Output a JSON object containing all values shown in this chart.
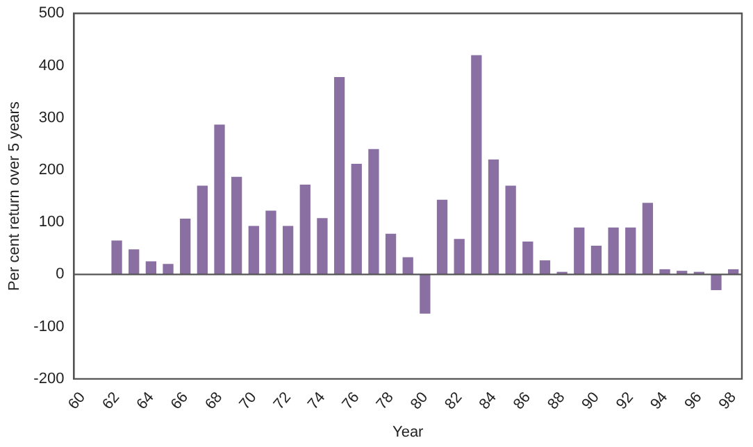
{
  "chart_data": {
    "type": "bar",
    "xlabel": "Year",
    "ylabel": "Per cent return over 5 years",
    "categories": [
      "60",
      null,
      "62",
      null,
      "64",
      null,
      "66",
      null,
      "68",
      null,
      "70",
      null,
      "72",
      null,
      "74",
      null,
      "76",
      null,
      "78",
      null,
      "80",
      null,
      "82",
      null,
      "84",
      null,
      "86",
      null,
      "88",
      null,
      "90",
      null,
      "92",
      null,
      "94",
      null,
      "96",
      null,
      "98"
    ],
    "values": [
      null,
      null,
      65,
      48,
      25,
      20,
      107,
      170,
      287,
      187,
      93,
      122,
      93,
      172,
      108,
      378,
      212,
      240,
      78,
      33,
      -75,
      143,
      68,
      420,
      220,
      170,
      63,
      27,
      5,
      90,
      55,
      90,
      90,
      137,
      10,
      7,
      5,
      -30,
      10
    ],
    "color": "#8a6fa3",
    "ylim": [
      -200,
      500
    ],
    "yticks": [
      -200,
      -100,
      0,
      100,
      200,
      300,
      400,
      500
    ],
    "grid": false,
    "legend": false,
    "ref_lines": [
      {
        "axis": "y",
        "value": 0,
        "color": "#555555"
      }
    ]
  }
}
